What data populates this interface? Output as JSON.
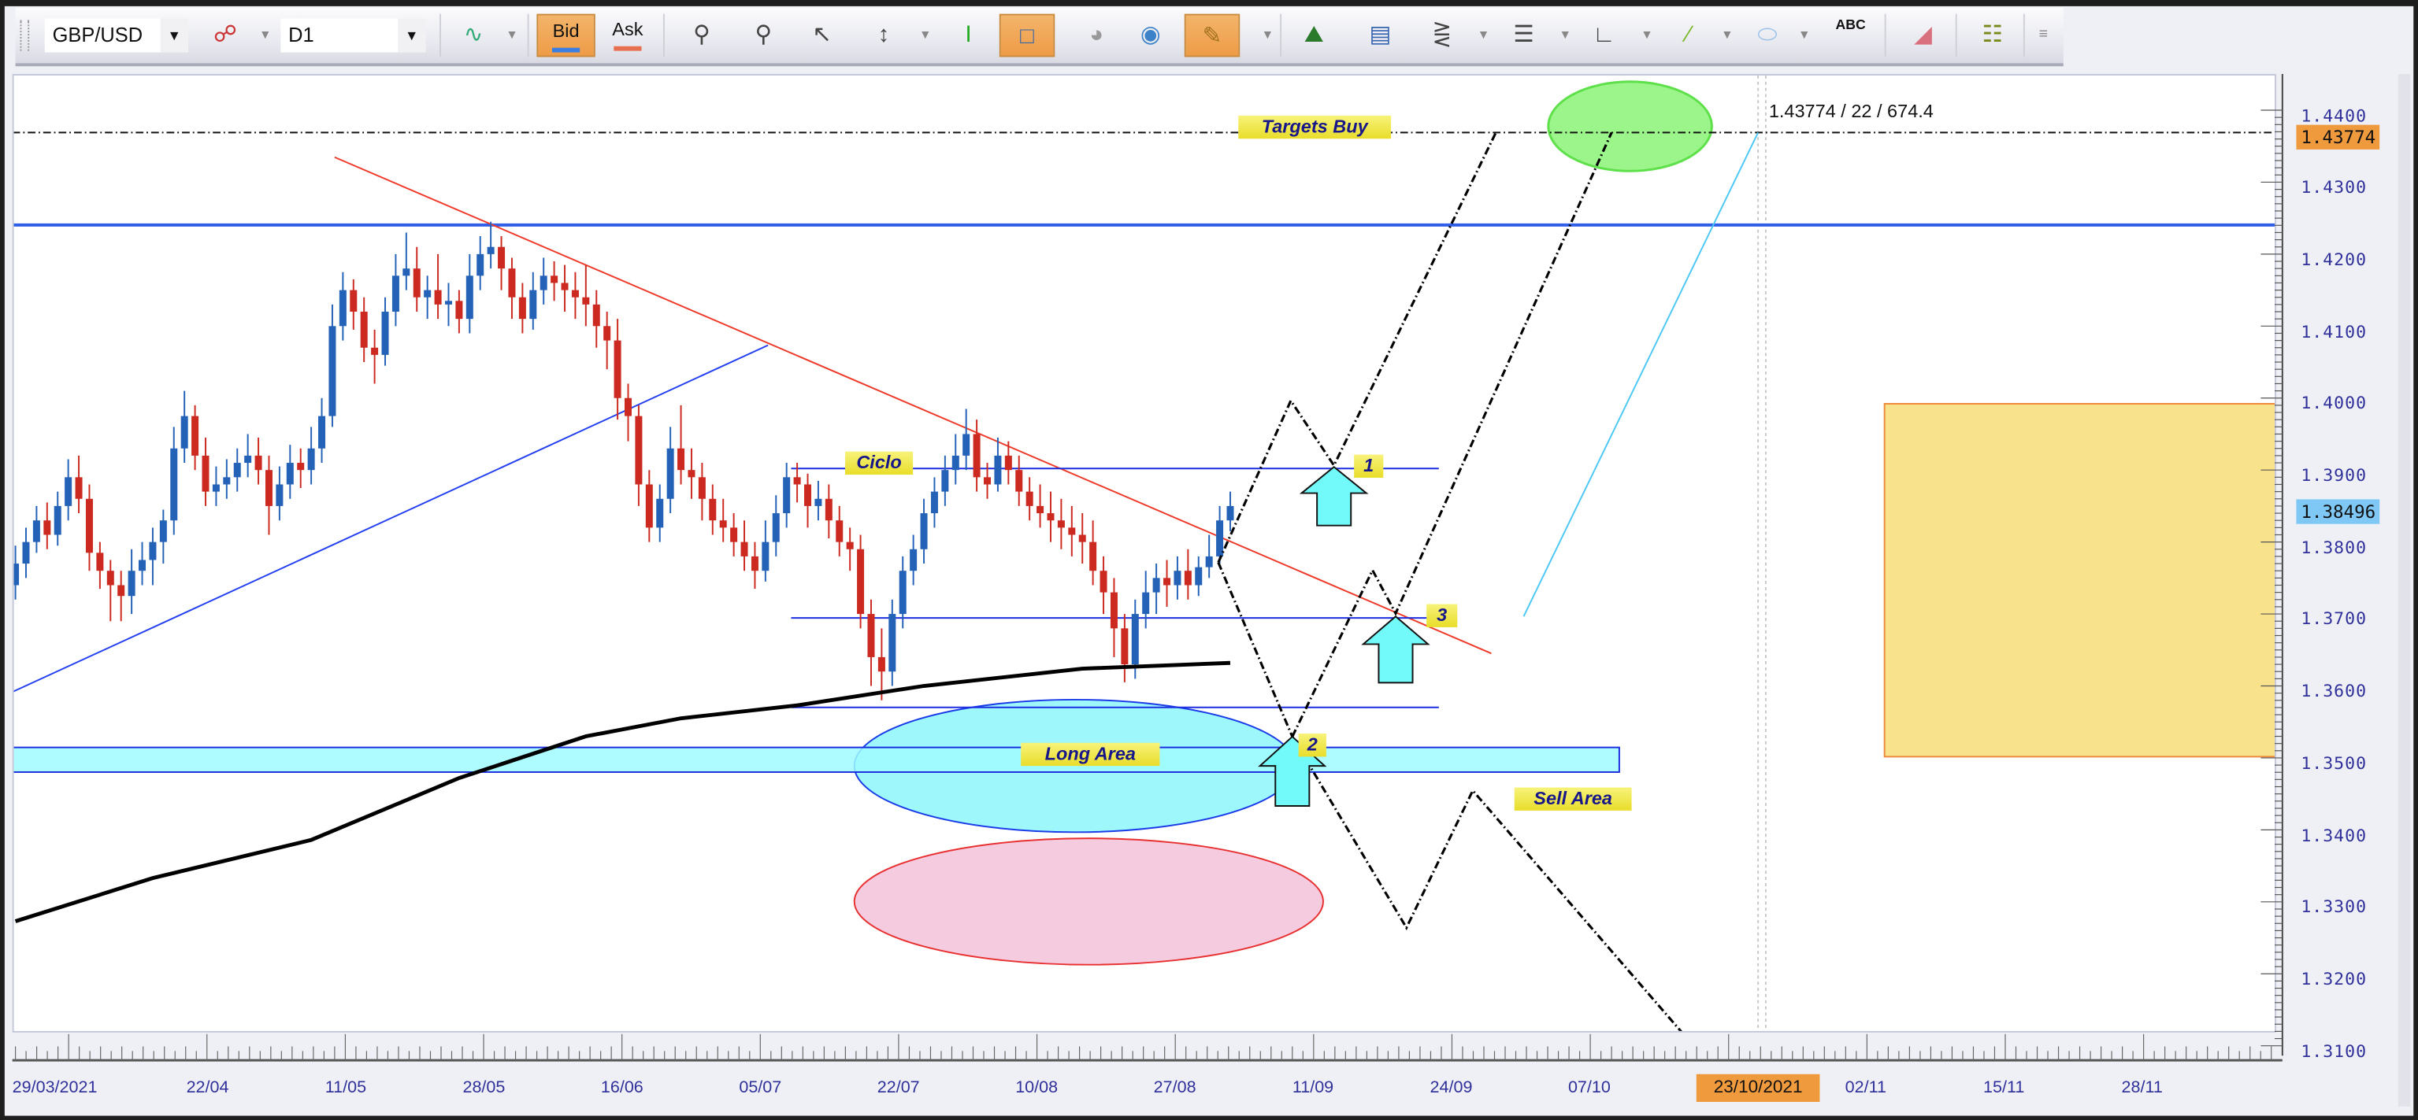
{
  "toolbar": {
    "symbol": "GBP/USD",
    "timeframe": "D1",
    "bid_label": "Bid",
    "ask_label": "Ask",
    "bid_active": true,
    "text_tool_label": "ABC",
    "icons": [
      "indicators-icon",
      "chart-type-icon",
      "zoom-in-icon",
      "zoom-out-icon",
      "cursor-icon",
      "zoom-range-icon",
      "cursor-vertical-icon",
      "snapshot-window-icon",
      "compare-icon",
      "globe-icon",
      "ruler-icon",
      "picture-icon",
      "template-icon",
      "pitchfork-icon",
      "fibonacci-icon",
      "gann-fan-icon",
      "line-tool-icon",
      "ellipse-tool-icon",
      "text-tool-icon",
      "eraser-icon",
      "object-tree-icon",
      "more-icon"
    ]
  },
  "colors": {
    "up": "#2462b8",
    "down": "#cc2a20",
    "accent": "#f09a3e",
    "current_price": "#7fc8f5"
  },
  "chart_data": {
    "type": "candlestick",
    "ylim": [
      1.31,
      1.44
    ],
    "y_ticks": [
      "1.4400",
      "1.4300",
      "1.4200",
      "1.4100",
      "1.4000",
      "1.3900",
      "1.3800",
      "1.3700",
      "1.3600",
      "1.3500",
      "1.3400",
      "1.3300",
      "1.3200",
      "1.3100"
    ],
    "x_ticks": [
      "29/03/2021",
      "22/04",
      "11/05",
      "28/05",
      "16/06",
      "05/07",
      "22/07",
      "10/08",
      "27/08",
      "11/09",
      "24/09",
      "07/10",
      "",
      "02/11",
      "15/11",
      "28/11"
    ],
    "crosshair_date": "23/10/2021",
    "crosshair_price": "1.43774",
    "current_price": "1.38496",
    "crosshair_readout": "1.43774 / 22 / 674.4",
    "candles": [
      [
        1.374,
        1.3795,
        1.372,
        1.377
      ],
      [
        1.377,
        1.382,
        1.375,
        1.38
      ],
      [
        1.38,
        1.385,
        1.3785,
        1.383
      ],
      [
        1.383,
        1.3855,
        1.379,
        1.381
      ],
      [
        1.381,
        1.387,
        1.3795,
        1.385
      ],
      [
        1.385,
        1.3915,
        1.383,
        1.389
      ],
      [
        1.389,
        1.392,
        1.384,
        1.386
      ],
      [
        1.386,
        1.388,
        1.376,
        1.3785
      ],
      [
        1.3785,
        1.38,
        1.3735,
        1.376
      ],
      [
        1.376,
        1.3775,
        1.369,
        1.374
      ],
      [
        1.374,
        1.376,
        1.369,
        1.3725
      ],
      [
        1.3725,
        1.379,
        1.37,
        1.376
      ],
      [
        1.376,
        1.38,
        1.374,
        1.3775
      ],
      [
        1.3775,
        1.382,
        1.374,
        1.38
      ],
      [
        1.38,
        1.3845,
        1.377,
        1.383
      ],
      [
        1.383,
        1.396,
        1.381,
        1.393
      ],
      [
        1.393,
        1.401,
        1.391,
        1.3975
      ],
      [
        1.3975,
        1.399,
        1.39,
        1.392
      ],
      [
        1.392,
        1.3945,
        1.385,
        1.387
      ],
      [
        1.387,
        1.3905,
        1.385,
        1.388
      ],
      [
        1.388,
        1.3915,
        1.386,
        1.389
      ],
      [
        1.389,
        1.393,
        1.387,
        1.391
      ],
      [
        1.391,
        1.395,
        1.389,
        1.392
      ],
      [
        1.392,
        1.3945,
        1.388,
        1.39
      ],
      [
        1.39,
        1.392,
        1.381,
        1.385
      ],
      [
        1.385,
        1.3905,
        1.383,
        1.388
      ],
      [
        1.388,
        1.3935,
        1.386,
        1.391
      ],
      [
        1.391,
        1.393,
        1.3875,
        1.39
      ],
      [
        1.39,
        1.396,
        1.388,
        1.393
      ],
      [
        1.393,
        1.4,
        1.391,
        1.3975
      ],
      [
        1.3975,
        1.413,
        1.396,
        1.41
      ],
      [
        1.41,
        1.4175,
        1.408,
        1.415
      ],
      [
        1.415,
        1.4165,
        1.4095,
        1.412
      ],
      [
        1.412,
        1.414,
        1.405,
        1.407
      ],
      [
        1.407,
        1.4095,
        1.402,
        1.406
      ],
      [
        1.406,
        1.414,
        1.4045,
        1.412
      ],
      [
        1.412,
        1.42,
        1.41,
        1.417
      ],
      [
        1.417,
        1.423,
        1.415,
        1.418
      ],
      [
        1.418,
        1.421,
        1.412,
        1.414
      ],
      [
        1.414,
        1.417,
        1.411,
        1.415
      ],
      [
        1.415,
        1.42,
        1.411,
        1.413
      ],
      [
        1.413,
        1.416,
        1.41,
        1.4135
      ],
      [
        1.4135,
        1.415,
        1.409,
        1.411
      ],
      [
        1.411,
        1.42,
        1.409,
        1.417
      ],
      [
        1.417,
        1.4225,
        1.415,
        1.42
      ],
      [
        1.42,
        1.4245,
        1.418,
        1.421
      ],
      [
        1.421,
        1.4225,
        1.415,
        1.418
      ],
      [
        1.418,
        1.4195,
        1.411,
        1.414
      ],
      [
        1.414,
        1.416,
        1.409,
        1.411
      ],
      [
        1.411,
        1.4175,
        1.4095,
        1.415
      ],
      [
        1.415,
        1.4195,
        1.413,
        1.417
      ],
      [
        1.417,
        1.419,
        1.4135,
        1.416
      ],
      [
        1.416,
        1.4185,
        1.412,
        1.415
      ],
      [
        1.415,
        1.4175,
        1.411,
        1.414
      ],
      [
        1.414,
        1.4185,
        1.41,
        1.413
      ],
      [
        1.413,
        1.415,
        1.407,
        1.41
      ],
      [
        1.41,
        1.412,
        1.404,
        1.408
      ],
      [
        1.408,
        1.411,
        1.397,
        1.4
      ],
      [
        1.4,
        1.402,
        1.394,
        1.3975
      ],
      [
        1.3975,
        1.399,
        1.385,
        1.388
      ],
      [
        1.388,
        1.39,
        1.38,
        1.382
      ],
      [
        1.382,
        1.388,
        1.38,
        1.386
      ],
      [
        1.386,
        1.396,
        1.384,
        1.393
      ],
      [
        1.393,
        1.399,
        1.388,
        1.39
      ],
      [
        1.39,
        1.393,
        1.386,
        1.389
      ],
      [
        1.389,
        1.391,
        1.383,
        1.386
      ],
      [
        1.386,
        1.388,
        1.381,
        1.383
      ],
      [
        1.383,
        1.386,
        1.38,
        1.382
      ],
      [
        1.382,
        1.384,
        1.378,
        1.38
      ],
      [
        1.38,
        1.383,
        1.376,
        1.378
      ],
      [
        1.378,
        1.38,
        1.3735,
        1.376
      ],
      [
        1.376,
        1.383,
        1.3745,
        1.38
      ],
      [
        1.38,
        1.3865,
        1.378,
        1.384
      ],
      [
        1.384,
        1.391,
        1.382,
        1.389
      ],
      [
        1.389,
        1.391,
        1.3855,
        1.388
      ],
      [
        1.388,
        1.3895,
        1.382,
        1.385
      ],
      [
        1.385,
        1.3885,
        1.383,
        1.386
      ],
      [
        1.386,
        1.388,
        1.3805,
        1.383
      ],
      [
        1.383,
        1.385,
        1.378,
        1.38
      ],
      [
        1.38,
        1.382,
        1.376,
        1.379
      ],
      [
        1.379,
        1.381,
        1.368,
        1.37
      ],
      [
        1.37,
        1.372,
        1.36,
        1.364
      ],
      [
        1.364,
        1.368,
        1.358,
        1.362
      ],
      [
        1.362,
        1.372,
        1.36,
        1.37
      ],
      [
        1.37,
        1.378,
        1.368,
        1.376
      ],
      [
        1.376,
        1.381,
        1.374,
        1.379
      ],
      [
        1.379,
        1.386,
        1.377,
        1.384
      ],
      [
        1.384,
        1.389,
        1.382,
        1.387
      ],
      [
        1.387,
        1.392,
        1.385,
        1.39
      ],
      [
        1.39,
        1.395,
        1.388,
        1.392
      ],
      [
        1.392,
        1.3985,
        1.39,
        1.395
      ],
      [
        1.395,
        1.397,
        1.387,
        1.389
      ],
      [
        1.389,
        1.391,
        1.386,
        1.388
      ],
      [
        1.388,
        1.3945,
        1.387,
        1.392
      ],
      [
        1.392,
        1.394,
        1.388,
        1.39
      ],
      [
        1.39,
        1.392,
        1.385,
        1.387
      ],
      [
        1.387,
        1.389,
        1.383,
        1.385
      ],
      [
        1.385,
        1.388,
        1.382,
        1.384
      ],
      [
        1.384,
        1.387,
        1.38,
        1.383
      ],
      [
        1.383,
        1.386,
        1.379,
        1.382
      ],
      [
        1.382,
        1.385,
        1.378,
        1.381
      ],
      [
        1.381,
        1.384,
        1.377,
        1.38
      ],
      [
        1.38,
        1.383,
        1.374,
        1.376
      ],
      [
        1.376,
        1.378,
        1.37,
        1.373
      ],
      [
        1.373,
        1.375,
        1.364,
        1.368
      ],
      [
        1.368,
        1.37,
        1.3605,
        1.363
      ],
      [
        1.363,
        1.372,
        1.361,
        1.37
      ],
      [
        1.37,
        1.376,
        1.368,
        1.373
      ],
      [
        1.373,
        1.377,
        1.37,
        1.375
      ],
      [
        1.375,
        1.3775,
        1.371,
        1.374
      ],
      [
        1.374,
        1.378,
        1.372,
        1.376
      ],
      [
        1.376,
        1.379,
        1.372,
        1.374
      ],
      [
        1.374,
        1.378,
        1.3725,
        1.3765
      ],
      [
        1.3765,
        1.381,
        1.375,
        1.378
      ],
      [
        1.378,
        1.385,
        1.377,
        1.383
      ],
      [
        1.383,
        1.387,
        1.3815,
        1.385
      ]
    ],
    "moving_average": {
      "bar_index": [
        0,
        13,
        28,
        42,
        54,
        63,
        74,
        86,
        101,
        115
      ],
      "values": [
        1.3273,
        1.3333,
        1.3386,
        1.3472,
        1.353,
        1.3555,
        1.3573,
        1.36,
        1.3624,
        1.3632
      ]
    },
    "annotations": {
      "targets_buy": "Targets Buy",
      "ciclo": "Ciclo",
      "long_area": "Long Area",
      "sell_area": "Sell Area",
      "point_1": "1",
      "point_2": "2",
      "point_3": "3"
    }
  }
}
